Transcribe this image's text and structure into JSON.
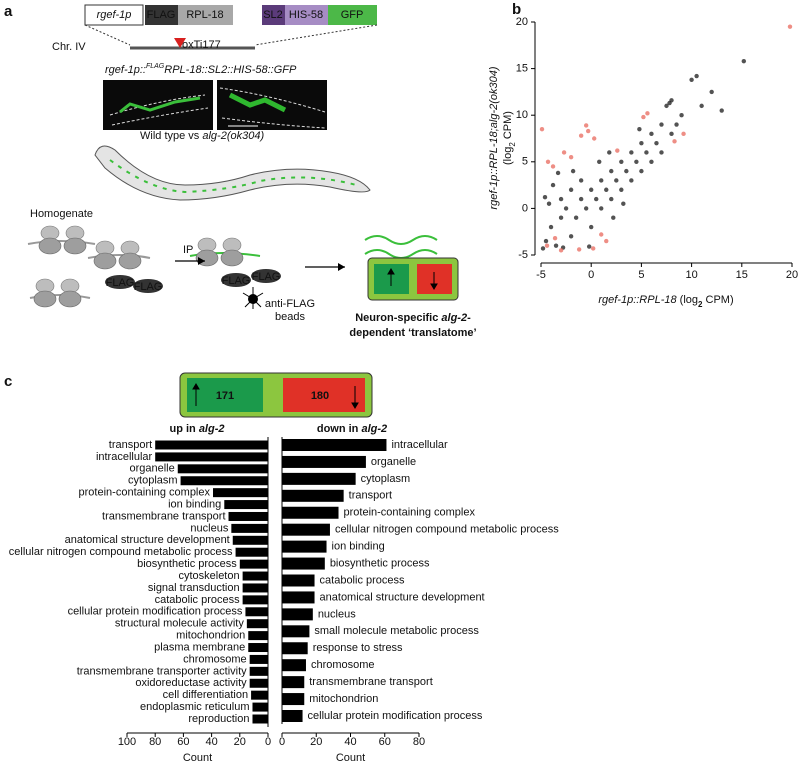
{
  "panel_labels": [
    "a",
    "b",
    "c"
  ],
  "diagram": {
    "construct": [
      "rgef-1p",
      "FLAG",
      "RPL-18",
      "SL2",
      "HIS-58",
      "GFP"
    ],
    "chromosome": "Chr. IV",
    "insertion": "oxTi177",
    "reporter": [
      "rgef-1p::",
      "FLAG",
      "RPL-18::SL2::HIS-58::GFP"
    ],
    "comparison": [
      "Wild type vs ",
      "alg-2(ok304)"
    ],
    "homogenate": "Homogenate",
    "ip": "IP",
    "flag_tags": [
      "FLAG",
      "FLAG",
      "FLAG",
      "FLAG"
    ],
    "beads": [
      "anti-FLAG",
      "beads"
    ],
    "result_line1": [
      "Neuron-specific ",
      "alg-2",
      "-"
    ],
    "result_line2": "dependent ‘translatome’"
  },
  "summary": {
    "up": 171,
    "down": 180
  },
  "chart_data": [
    {
      "type": "scatter",
      "x_label": [
        "rgef-1p::RPL-18",
        " (log",
        "2",
        " CPM)"
      ],
      "y_label": [
        "rgef-1p::RPL-18;alg-2(ok304)",
        "(log",
        "2",
        " CPM)"
      ],
      "xlim": [
        -5,
        20
      ],
      "xticks": [
        -5,
        0,
        5,
        10,
        15,
        20
      ],
      "ylim": [
        -5,
        20
      ],
      "yticks": [
        -5,
        0,
        5,
        10,
        15,
        20
      ],
      "series": [
        {
          "color": "#1a1a1a",
          "x": [
            -4.5,
            -4,
            -3.5,
            -3,
            -3,
            -2.5,
            -2,
            -2,
            -1.5,
            -1,
            -1,
            -0.5,
            0,
            0,
            0.5,
            1,
            1,
            1.5,
            2,
            2,
            2.5,
            3,
            3,
            3.5,
            4,
            4,
            4.5,
            5,
            5,
            5.5,
            6,
            6,
            6.5,
            7,
            7,
            7.5,
            7.8,
            8,
            8,
            8.5,
            9,
            10,
            10.5,
            11,
            12,
            13,
            15.2,
            -4.8,
            -4.2,
            -3.8,
            -4.6,
            -2.8,
            -1.8,
            -0.2,
            0.8,
            2.2,
            3.2,
            -3.3,
            1.8,
            4.8
          ],
          "values": [
            -3.5,
            -2,
            -4,
            -1,
            1,
            0,
            -3,
            2,
            -1,
            1,
            3,
            0,
            2,
            -2,
            1,
            3,
            0,
            2,
            4,
            1,
            3,
            2,
            5,
            4,
            3,
            6,
            5,
            4,
            7,
            6,
            5,
            8,
            7,
            9,
            6,
            11,
            11.3,
            11.6,
            8,
            9,
            10,
            13.8,
            14.2,
            11,
            12.5,
            10.5,
            15.8,
            -4.3,
            0.5,
            2.5,
            1.2,
            -4.2,
            4,
            -4.1,
            5,
            -1,
            0.5,
            3.8,
            6,
            8.5
          ]
        },
        {
          "color": "#e8685c",
          "x": [
            19.8,
            -4.9,
            -4.3,
            -3.8,
            -2.7,
            -1,
            -0.5,
            -0.3,
            -2,
            0.2,
            1.5,
            1,
            -3,
            -1.2,
            0.3,
            5.6,
            5.2,
            2.6,
            8.3,
            9.2,
            -4.4,
            -3.6
          ],
          "values": [
            19.5,
            8.5,
            5,
            4.5,
            6,
            7.8,
            8.9,
            8.3,
            5.5,
            -4.3,
            -3.5,
            -2.8,
            -4.5,
            -4.4,
            7.5,
            10.2,
            9.8,
            6.2,
            7.2,
            8,
            -4,
            -3.2
          ]
        }
      ]
    },
    {
      "type": "barh",
      "title": [
        "up in ",
        "alg-2"
      ],
      "x_label": "Count",
      "color": "#000000",
      "categories": [
        "transport",
        "intracellular",
        "organelle",
        "cytoplasm",
        "protein-containing complex",
        "ion binding",
        "transmembrane transport",
        "nucleus",
        "anatomical structure development",
        "cellular nitrogen compound metabolic process",
        "biosynthetic process",
        "cytoskeleton",
        "signal transduction",
        "catabolic process",
        "cellular protein modification process",
        "structural molecule activity",
        "mitochondrion",
        "plasma membrane",
        "chromosome",
        "transmembrane transporter activity",
        "oxidoreductase activity",
        "cell differentiation",
        "endoplasmic reticulum",
        "reproduction"
      ],
      "values": [
        80,
        80,
        64,
        62,
        39,
        31,
        28,
        26,
        25,
        23,
        20,
        18,
        18,
        18,
        16,
        15,
        14,
        14,
        13,
        13,
        13,
        12,
        11,
        11
      ],
      "xlim": [
        100,
        0
      ],
      "xticks": [
        100,
        80,
        60,
        40,
        20,
        0
      ]
    },
    {
      "type": "barh",
      "title": [
        "down in ",
        "alg-2"
      ],
      "x_label": "Count",
      "color": "#000000",
      "categories": [
        "intracellular",
        "organelle",
        "cytoplasm",
        "transport",
        "protein-containing complex",
        "cellular nitrogen compound metabolic process",
        "ion binding",
        "biosynthetic process",
        "catabolic process",
        "anatomical structure development",
        "nucleus",
        "small molecule metabolic process",
        "response to stress",
        "chromosome",
        "transmembrane transport",
        "mitochondrion",
        "cellular protein modification process"
      ],
      "values": [
        61,
        49,
        43,
        36,
        33,
        28,
        26,
        25,
        19,
        19,
        18,
        16,
        15,
        14,
        13,
        13,
        12
      ],
      "xlim": [
        0,
        80
      ],
      "xticks": [
        0,
        20,
        40,
        60,
        80
      ]
    }
  ]
}
